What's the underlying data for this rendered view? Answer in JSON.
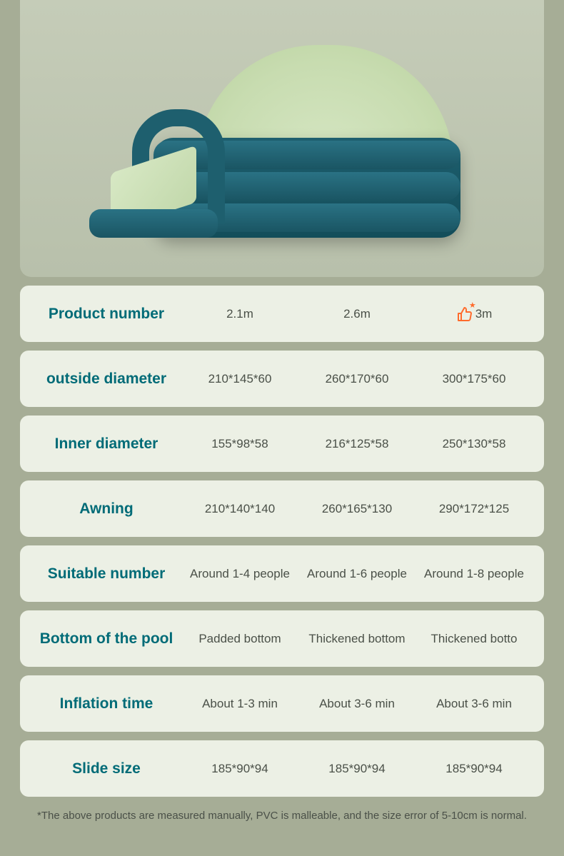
{
  "specs": [
    {
      "label": "Product number",
      "values": [
        "2.1m",
        "2.6m",
        "3m"
      ],
      "highlight_icon_index": 2
    },
    {
      "label": "outside diameter",
      "values": [
        "210*145*60",
        "260*170*60",
        "300*175*60"
      ]
    },
    {
      "label": "Inner diameter",
      "values": [
        "155*98*58",
        "216*125*58",
        "250*130*58"
      ]
    },
    {
      "label": "Awning",
      "values": [
        "210*140*140",
        "260*165*130",
        "290*172*125"
      ]
    },
    {
      "label": "Suitable number",
      "values": [
        "Around 1-4 people",
        "Around 1-6 people",
        "Around 1-8 people"
      ]
    },
    {
      "label": "Bottom of the pool",
      "values": [
        "Padded bottom",
        "Thickened bottom",
        "Thickened botto"
      ]
    },
    {
      "label": "Inflation time",
      "values": [
        "About 1-3 min",
        "About 3-6 min",
        "About 3-6 min"
      ]
    },
    {
      "label": "Slide size",
      "values": [
        "185*90*94",
        "185*90*94",
        "185*90*94"
      ]
    }
  ],
  "footnote": "*The above products are measured manually, PVC is malleable, and the size error of 5-10cm is normal.",
  "colors": {
    "page_bg": "#a6ad96",
    "row_bg": "#ecf0e5",
    "label_color": "#006b77",
    "value_color": "#4a5048",
    "highlight_icon_color": "#ff6b2c"
  }
}
